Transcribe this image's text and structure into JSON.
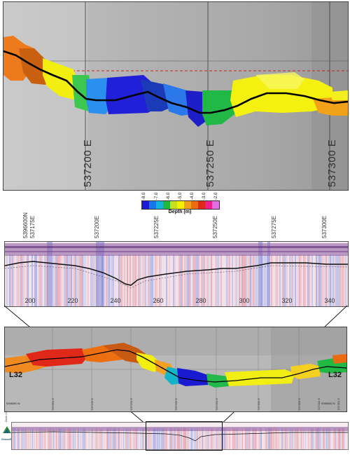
{
  "top_map": {
    "eastings": [
      "537200 E",
      "537250 E",
      "537300 E"
    ]
  },
  "legend": {
    "ticks": [
      "-8.0",
      "-7.0",
      "-6.0",
      "-5.0",
      "-4.0",
      "-3.0",
      "-2.0"
    ],
    "title": "Depth (m)",
    "colors": [
      "#1c1cd8",
      "#1577e8",
      "#14b4d8",
      "#22b83a",
      "#c8e020",
      "#f4f000",
      "#f0a020",
      "#ec6a10",
      "#e02818",
      "#f01e8c",
      "#e070e0"
    ]
  },
  "profile": {
    "top_labels": [
      "5396600N",
      "537175E",
      "537200E",
      "537225E",
      "537250E",
      "537275E",
      "537300E"
    ],
    "x_ticks": [
      "200",
      "220",
      "240",
      "260",
      "280",
      "300",
      "320",
      "340"
    ]
  },
  "overview": {
    "line_label_left": "L32",
    "line_label_right": "L32",
    "eastings": [
      "537050 E",
      "537100 E",
      "537150 E",
      "537200 E",
      "537250 E",
      "537300 E",
      "537350 E",
      "537400 E",
      "537450 E"
    ],
    "northing_left": "5396550 N",
    "northing_right": "5396500 N"
  },
  "mini_profile": {
    "logo_text": "GroundTruth",
    "axis_label": "Depth (m)"
  }
}
